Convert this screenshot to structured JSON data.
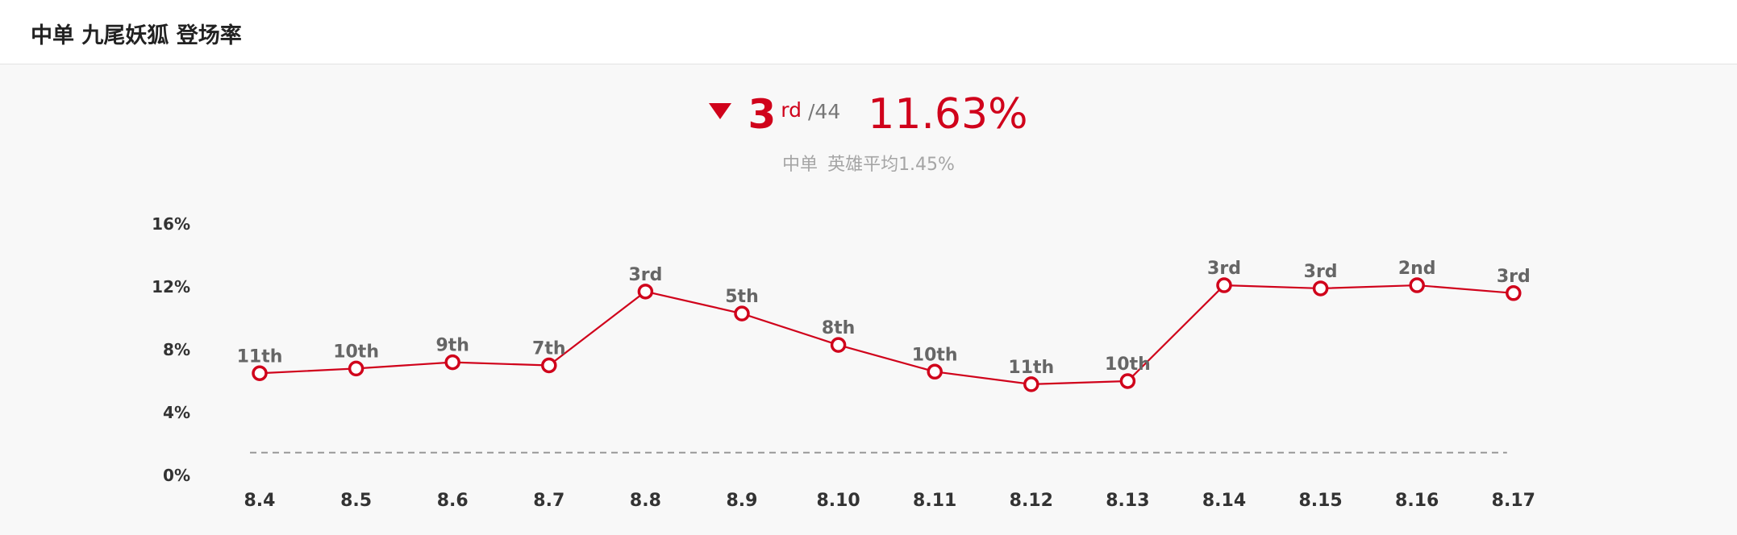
{
  "header": {
    "title": "中单 九尾妖狐 登场率"
  },
  "summary": {
    "trend_icon": "triangle-down-icon",
    "rank": "3",
    "rank_suffix": "rd",
    "rank_total": "/44",
    "rate": "11.63%",
    "subline_position": "中单",
    "subline_average": "英雄平均1.45%"
  },
  "colors": {
    "accent": "#d0021b",
    "average_line": "#999999"
  },
  "chart_data": {
    "type": "line",
    "title": "",
    "xlabel": "",
    "ylabel": "",
    "categories": [
      "8.4",
      "8.5",
      "8.6",
      "8.7",
      "8.8",
      "8.9",
      "8.10",
      "8.11",
      "8.12",
      "8.13",
      "8.14",
      "8.15",
      "8.16",
      "8.17"
    ],
    "series": [
      {
        "values": [
          6.5,
          6.8,
          7.2,
          7.0,
          11.7,
          10.3,
          8.3,
          6.6,
          5.8,
          6.0,
          12.1,
          11.9,
          12.1,
          11.6
        ],
        "point_labels": [
          "11th",
          "10th",
          "9th",
          "7th",
          "3rd",
          "5th",
          "8th",
          "10th",
          "11th",
          "10th",
          "3rd",
          "3rd",
          "2nd",
          "3rd"
        ]
      }
    ],
    "reference_line": {
      "value": 1.45,
      "style": "dashed"
    },
    "y_ticks": [
      "0%",
      "4%",
      "8%",
      "12%",
      "16%"
    ],
    "ylim": [
      0,
      16
    ],
    "grid": false
  }
}
